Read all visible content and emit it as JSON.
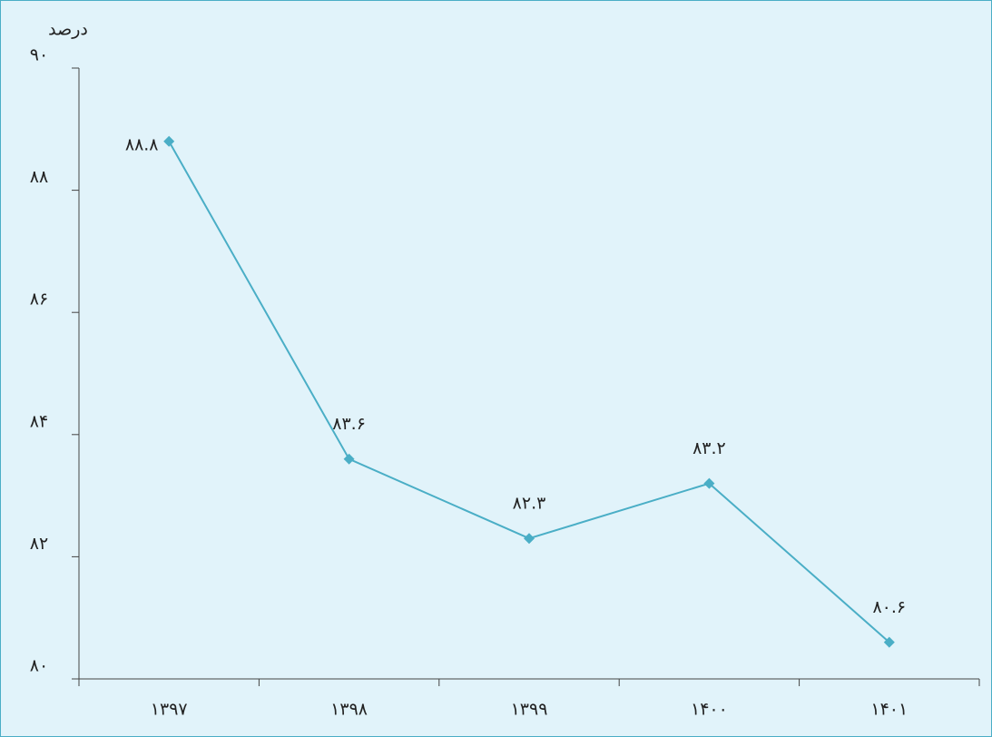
{
  "chart_data": {
    "type": "line",
    "y_axis_label": "درصد",
    "categories": [
      "۱۳۹۷",
      "۱۳۹۸",
      "۱۳۹۹",
      "۱۴۰۰",
      "۱۴۰۱"
    ],
    "series": [
      {
        "color": "#4aaec6",
        "values": [
          88.8,
          83.6,
          82.3,
          83.2,
          80.6
        ],
        "value_labels": [
          "۸۸.۸",
          "۸۳.۶",
          "۸۲.۳",
          "۸۳.۲",
          "۸۰.۶"
        ]
      }
    ],
    "ylim": [
      80,
      90
    ],
    "yticks": [
      {
        "value": 80,
        "label": "۸۰"
      },
      {
        "value": 82,
        "label": "۸۲"
      },
      {
        "value": 84,
        "label": "۸۴"
      },
      {
        "value": 86,
        "label": "۸۶"
      },
      {
        "value": 88,
        "label": "۸۸"
      },
      {
        "value": 90,
        "label": "۹۰"
      }
    ],
    "grid": false
  }
}
